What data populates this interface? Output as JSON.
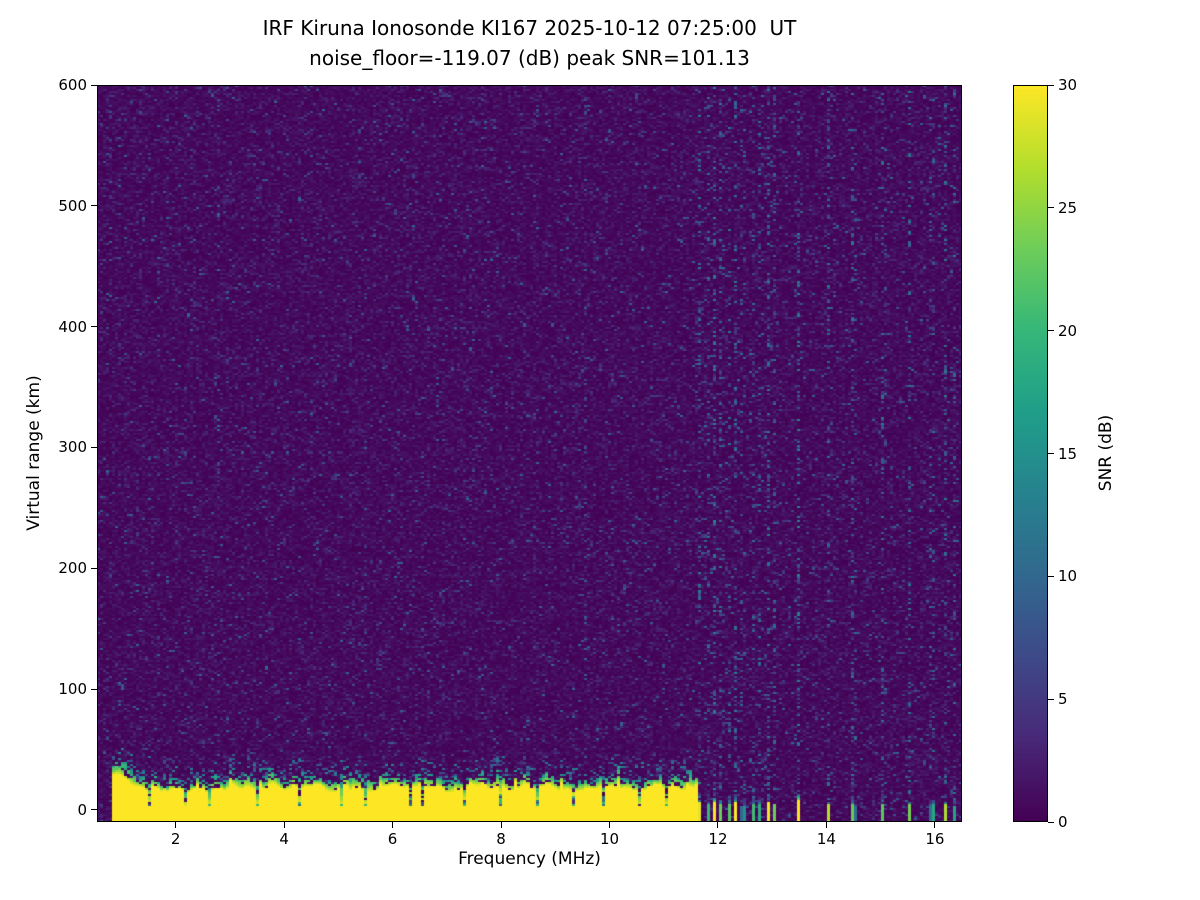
{
  "chart_data": {
    "type": "heatmap",
    "title_line1": "IRF Kiruna Ionosonde KI167 2025-10-12 07:25:00  UT",
    "title_line2": "noise_floor=-119.07 (dB) peak SNR=101.13",
    "xlabel": "Frequency (MHz)",
    "ylabel": "Virtual range (km)",
    "colorbar_label": "SNR (dB)",
    "colormap": "viridis",
    "station": "KI167",
    "timestamp_ut": "2025-10-12 07:25:00",
    "noise_floor_db": -119.07,
    "peak_snr_db": 101.13,
    "xlim": [
      0.55,
      16.5
    ],
    "ylim": [
      -10,
      600
    ],
    "xticks": [
      2,
      4,
      6,
      8,
      10,
      12,
      14,
      16
    ],
    "yticks": [
      0,
      100,
      200,
      300,
      400,
      500,
      600
    ],
    "clim": [
      0,
      30
    ],
    "colorbar_ticks": [
      0,
      5,
      10,
      15,
      20,
      25,
      30
    ],
    "background_noise": {
      "mean_snr_db": 1.0,
      "speckle_prob": 0.02,
      "speckle_snr_range": [
        4,
        12
      ]
    },
    "ground_clutter_band": {
      "freq_start_mhz": 0.85,
      "freq_end_mhz": 11.62,
      "solid_top_km_range": [
        13,
        26
      ],
      "speckle_top_km_range": [
        24,
        44
      ],
      "snr_db": 30
    },
    "band_notch_freqs_mhz": [
      1.52,
      2.18,
      2.62,
      3.52,
      4.28,
      5.06,
      5.5,
      6.32,
      6.55,
      7.35,
      8.02,
      8.65,
      9.35,
      9.9,
      10.55,
      11.05,
      11.35
    ],
    "faint_column_freqs_mhz": [
      2.78,
      9.54
    ],
    "hf_stripes": [
      {
        "freq_mhz": 11.67,
        "strength": 0.85
      },
      {
        "freq_mhz": 11.8,
        "strength": 0.7
      },
      {
        "freq_mhz": 11.93,
        "strength": 0.8
      },
      {
        "freq_mhz": 12.06,
        "strength": 0.75
      },
      {
        "freq_mhz": 12.19,
        "strength": 0.7
      },
      {
        "freq_mhz": 12.33,
        "strength": 0.8
      },
      {
        "freq_mhz": 12.46,
        "strength": 0.65
      },
      {
        "freq_mhz": 12.63,
        "strength": 0.75
      },
      {
        "freq_mhz": 12.78,
        "strength": 0.6
      },
      {
        "freq_mhz": 12.92,
        "strength": 0.7
      },
      {
        "freq_mhz": 13.05,
        "strength": 0.6
      },
      {
        "freq_mhz": 13.48,
        "strength": 0.95
      },
      {
        "freq_mhz": 14.05,
        "strength": 0.75
      },
      {
        "freq_mhz": 14.5,
        "strength": 0.85
      },
      {
        "freq_mhz": 15.05,
        "strength": 0.7
      },
      {
        "freq_mhz": 15.52,
        "strength": 0.6
      },
      {
        "freq_mhz": 15.95,
        "strength": 0.75
      },
      {
        "freq_mhz": 16.2,
        "strength": 0.6
      },
      {
        "freq_mhz": 16.35,
        "strength": 0.45
      }
    ]
  }
}
